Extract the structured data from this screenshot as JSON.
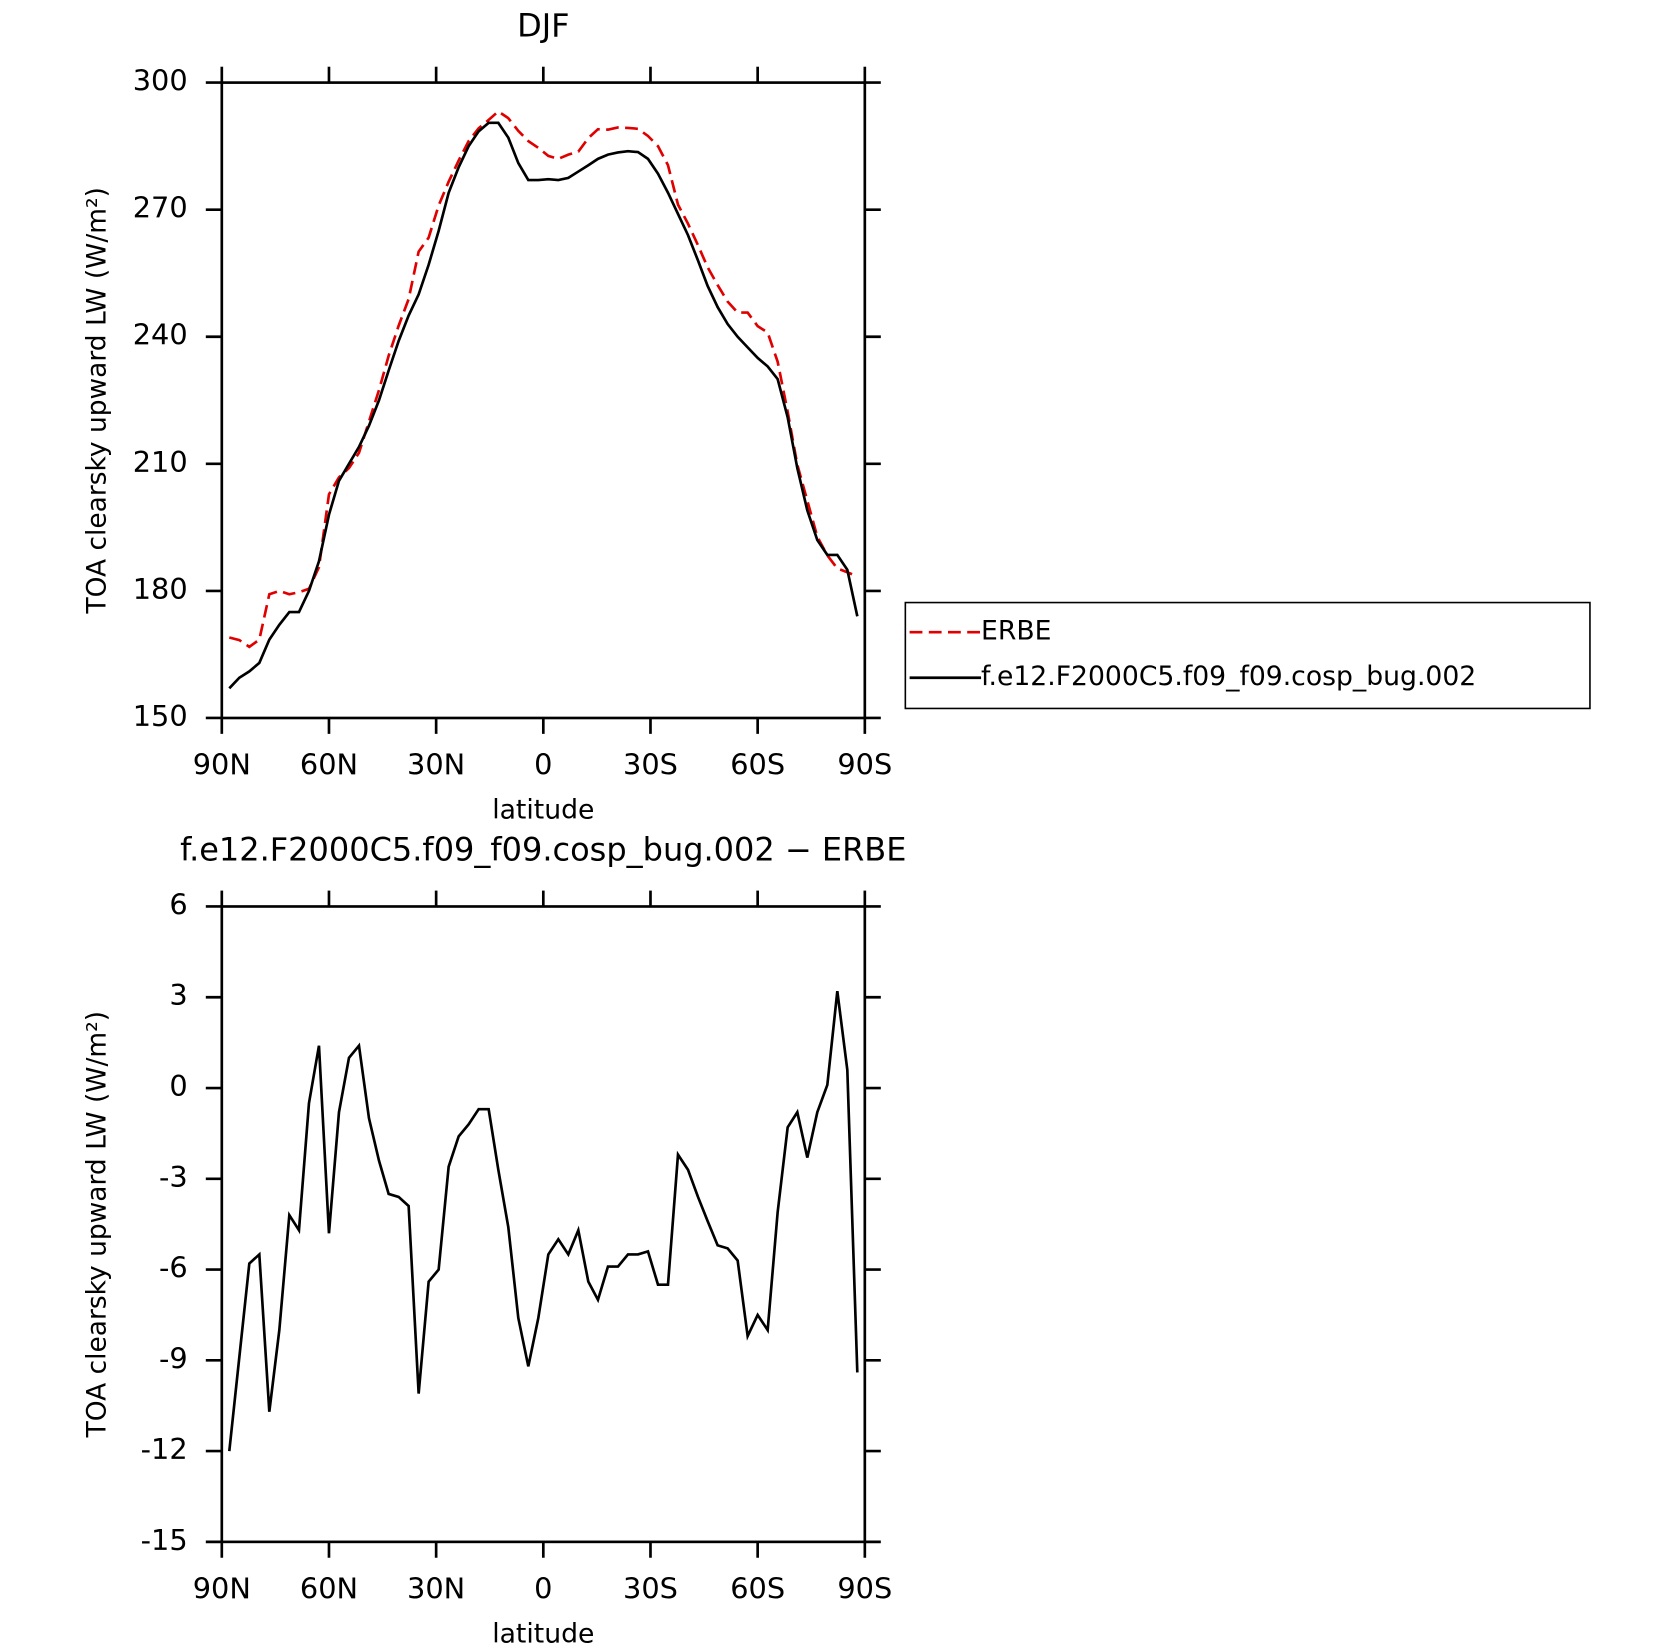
{
  "chart_data": [
    {
      "type": "line",
      "title": "DJF",
      "xlabel": "latitude",
      "ylabel": "TOA clearsky upward LW (W/m²)",
      "x": [
        87.9,
        85.1,
        82.3,
        79.5,
        76.7,
        73.9,
        71.1,
        68.4,
        65.6,
        62.8,
        60.0,
        57.2,
        54.4,
        51.6,
        48.8,
        46.0,
        43.3,
        40.5,
        37.7,
        34.9,
        32.1,
        29.3,
        26.5,
        23.7,
        20.9,
        18.1,
        15.3,
        12.6,
        9.8,
        7.0,
        4.2,
        1.4,
        -1.4,
        -4.2,
        -7.0,
        -9.8,
        -12.6,
        -15.3,
        -18.1,
        -20.9,
        -23.7,
        -26.5,
        -29.3,
        -32.1,
        -34.9,
        -37.7,
        -40.5,
        -43.3,
        -46.0,
        -48.8,
        -51.6,
        -54.4,
        -57.2,
        -60.0,
        -62.8,
        -65.6,
        -68.4,
        -71.1,
        -73.9,
        -76.7,
        -79.5,
        -82.3,
        -85.1,
        -87.9
      ],
      "series": [
        {
          "name": "ERBE",
          "color": "#e00000",
          "dash": "dashed",
          "values": [
            169,
            168.4,
            166.8,
            168.5,
            179.2,
            180,
            179.2,
            179.7,
            180.5,
            185.6,
            202.8,
            206.8,
            209,
            212.6,
            220,
            227.4,
            235.5,
            242.6,
            248.9,
            260.1,
            263.4,
            271,
            276.6,
            281.6,
            286.2,
            289.2,
            291.2,
            293.2,
            291.6,
            288.6,
            286.2,
            284.6,
            282.7,
            282,
            283,
            283.7,
            286.9,
            289,
            288.9,
            289.4,
            289.3,
            289.1,
            287.4,
            285,
            280.5,
            271.2,
            266.7,
            261.6,
            256.4,
            252.2,
            248.3,
            245.7,
            245.7,
            242.5,
            241,
            234.1,
            222.3,
            209.8,
            201.3,
            192.8,
            188.4,
            185.3,
            184.4,
            183.4
          ]
        },
        {
          "name": "f.e12.F2000C5.f09_f09.cosp_bug.002",
          "color": "#000000",
          "dash": "solid",
          "values": [
            157,
            159.5,
            161,
            163,
            168.5,
            172,
            175,
            175,
            180,
            187,
            198,
            206,
            210,
            214,
            219,
            225,
            232,
            239,
            245,
            250,
            257,
            265,
            274,
            280,
            285,
            288.5,
            290.5,
            290.5,
            287,
            281,
            277,
            277,
            277.2,
            277,
            277.5,
            279,
            280.5,
            282,
            283,
            283.5,
            283.8,
            283.6,
            282,
            278.5,
            274,
            269,
            264,
            258,
            252,
            247,
            243,
            240,
            237.5,
            235,
            233,
            230,
            221,
            209,
            199,
            192,
            188.5,
            188.5,
            185,
            174
          ]
        }
      ],
      "xlim": [
        90,
        -90
      ],
      "xticks": [
        {
          "value": 90,
          "label": "90N"
        },
        {
          "value": 60,
          "label": "60N"
        },
        {
          "value": 30,
          "label": "30N"
        },
        0,
        {
          "value": -30,
          "label": "30S"
        },
        {
          "value": -60,
          "label": "60S"
        },
        {
          "value": -90,
          "label": "90S"
        }
      ],
      "ylim": [
        150,
        300
      ],
      "yticks": [
        150,
        180,
        210,
        240,
        270,
        300
      ],
      "legend": "right"
    },
    {
      "type": "line",
      "title": "f.e12.F2000C5.f09_f09.cosp_bug.002 − ERBE",
      "xlabel": "latitude",
      "ylabel": "TOA clearsky upward LW (W/m²)",
      "x": [
        87.9,
        85.1,
        82.3,
        79.5,
        76.7,
        73.9,
        71.1,
        68.4,
        65.6,
        62.8,
        60.0,
        57.2,
        54.4,
        51.6,
        48.8,
        46.0,
        43.3,
        40.5,
        37.7,
        34.9,
        32.1,
        29.3,
        26.5,
        23.7,
        20.9,
        18.1,
        15.3,
        12.6,
        9.8,
        7.0,
        4.2,
        1.4,
        -1.4,
        -4.2,
        -7.0,
        -9.8,
        -12.6,
        -15.3,
        -18.1,
        -20.9,
        -23.7,
        -26.5,
        -29.3,
        -32.1,
        -34.9,
        -37.7,
        -40.5,
        -43.3,
        -46.0,
        -48.8,
        -51.6,
        -54.4,
        -57.2,
        -60.0,
        -62.8,
        -65.6,
        -68.4,
        -71.1,
        -73.9,
        -76.7,
        -79.5,
        -82.3,
        -85.1,
        -87.9
      ],
      "series": [
        {
          "color": "#000000",
          "dash": "solid",
          "values": [
            -12.0,
            -8.9,
            -5.8,
            -5.5,
            -10.7,
            -8.0,
            -4.2,
            -4.7,
            -0.5,
            1.4,
            -4.8,
            -0.8,
            1.0,
            1.4,
            -1.0,
            -2.4,
            -3.5,
            -3.6,
            -3.9,
            -10.1,
            -6.4,
            -6.0,
            -2.6,
            -1.6,
            -1.2,
            -0.7,
            -0.7,
            -2.7,
            -4.6,
            -7.6,
            -9.2,
            -7.6,
            -5.5,
            -5.0,
            -5.5,
            -4.7,
            -6.4,
            -7.0,
            -5.9,
            -5.9,
            -5.5,
            -5.5,
            -5.4,
            -6.5,
            -6.5,
            -2.2,
            -2.7,
            -3.6,
            -4.4,
            -5.2,
            -5.3,
            -5.7,
            -8.2,
            -7.5,
            -8.0,
            -4.1,
            -1.3,
            -0.8,
            -2.3,
            -0.8,
            0.1,
            3.2,
            0.6,
            -9.4
          ]
        }
      ],
      "xlim": [
        90,
        -90
      ],
      "xticks": [
        {
          "value": 90,
          "label": "90N"
        },
        {
          "value": 60,
          "label": "60N"
        },
        {
          "value": 30,
          "label": "30N"
        },
        0,
        {
          "value": -30,
          "label": "30S"
        },
        {
          "value": -60,
          "label": "60S"
        },
        {
          "value": -90,
          "label": "90S"
        }
      ],
      "ylim": [
        -15,
        6
      ],
      "yticks": [
        -15,
        -12,
        -9,
        -6,
        -3,
        0,
        3,
        6
      ]
    }
  ]
}
